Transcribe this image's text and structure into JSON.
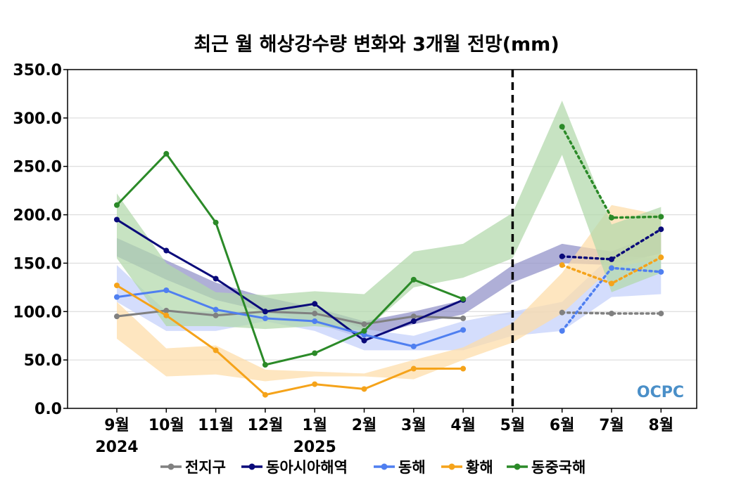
{
  "chart_data": {
    "type": "line",
    "title": "최근 월 해상강수량 변화와 3개월 전망(mm)",
    "xlabel": "",
    "ylabel": "",
    "ylim": [
      0,
      350
    ],
    "yticks": [
      "0.0",
      "50.0",
      "100.0",
      "150.0",
      "200.0",
      "250.0",
      "300.0",
      "350.0"
    ],
    "categories": [
      "9월",
      "10월",
      "11월",
      "12월",
      "1월",
      "2월",
      "3월",
      "4월",
      "5월",
      "6월",
      "7월",
      "8월"
    ],
    "year_labels": [
      {
        "index": 0,
        "text": "2024"
      },
      {
        "index": 4,
        "text": "2025"
      }
    ],
    "forecast_divider_after": "5월",
    "grid": true,
    "legend_position": "bottom",
    "logo_text": "OCPC",
    "series": [
      {
        "name": "전지구",
        "color": "#808080",
        "band_color": "#dddddd",
        "observed": [
          95,
          101,
          96,
          100,
          98,
          87,
          95,
          93,
          null,
          null,
          null,
          null
        ],
        "forecast": [
          null,
          null,
          null,
          null,
          null,
          null,
          null,
          null,
          null,
          99,
          98,
          98
        ],
        "band_lower": [
          96,
          99,
          97,
          98,
          97,
          88,
          95,
          94,
          97,
          100,
          98,
          98
        ],
        "band_upper": [
          97,
          101,
          99,
          100,
          99,
          90,
          96,
          95,
          99,
          101,
          99,
          99
        ]
      },
      {
        "name": "동아시아해역",
        "color": "#0a0a7a",
        "band_color": "#9090c8",
        "observed": [
          195,
          163,
          134,
          100,
          108,
          70,
          90,
          112,
          null,
          null,
          null,
          null
        ],
        "forecast": [
          null,
          null,
          null,
          null,
          null,
          null,
          null,
          null,
          null,
          157,
          154,
          185
        ],
        "band_lower": [
          157,
          133,
          112,
          100,
          88,
          72,
          87,
          97,
          130,
          150,
          148,
          160
        ],
        "band_upper": [
          176,
          153,
          130,
          115,
          104,
          90,
          100,
          112,
          148,
          170,
          162,
          182
        ]
      },
      {
        "name": "동해",
        "color": "#4f7ff0",
        "band_color": "#c4d0fb",
        "observed": [
          115,
          122,
          102,
          93,
          90,
          76,
          64,
          81,
          null,
          null,
          null,
          null
        ],
        "forecast": [
          null,
          null,
          null,
          null,
          null,
          null,
          null,
          null,
          null,
          80,
          145,
          141
        ],
        "band_lower": [
          110,
          80,
          80,
          90,
          80,
          60,
          60,
          60,
          75,
          80,
          115,
          118
        ],
        "band_upper": [
          148,
          100,
          100,
          100,
          100,
          82,
          75,
          90,
          100,
          110,
          158,
          155
        ]
      },
      {
        "name": "황해",
        "color": "#f5a31a",
        "band_color": "#fddca8",
        "observed": [
          127,
          96,
          60,
          14,
          25,
          20,
          41,
          41,
          null,
          null,
          null,
          null
        ],
        "forecast": [
          null,
          null,
          null,
          null,
          null,
          null,
          null,
          null,
          null,
          148,
          129,
          156
        ],
        "band_lower": [
          72,
          33,
          35,
          28,
          33,
          33,
          30,
          50,
          68,
          98,
          145,
          155
        ],
        "band_upper": [
          110,
          62,
          65,
          40,
          38,
          36,
          50,
          63,
          88,
          140,
          210,
          200
        ]
      },
      {
        "name": "동중국해",
        "color": "#2b8a28",
        "band_color": "#b2d8aa",
        "observed": [
          210,
          263,
          192,
          45,
          57,
          80,
          133,
          113,
          null,
          null,
          null,
          null
        ],
        "forecast": [
          null,
          null,
          null,
          null,
          null,
          null,
          null,
          null,
          null,
          291,
          197,
          198
        ],
        "band_lower": [
          155,
          85,
          85,
          82,
          85,
          80,
          125,
          135,
          155,
          262,
          120,
          140
        ],
        "band_upper": [
          222,
          150,
          120,
          117,
          121,
          118,
          162,
          170,
          202,
          318,
          190,
          208
        ]
      }
    ]
  }
}
